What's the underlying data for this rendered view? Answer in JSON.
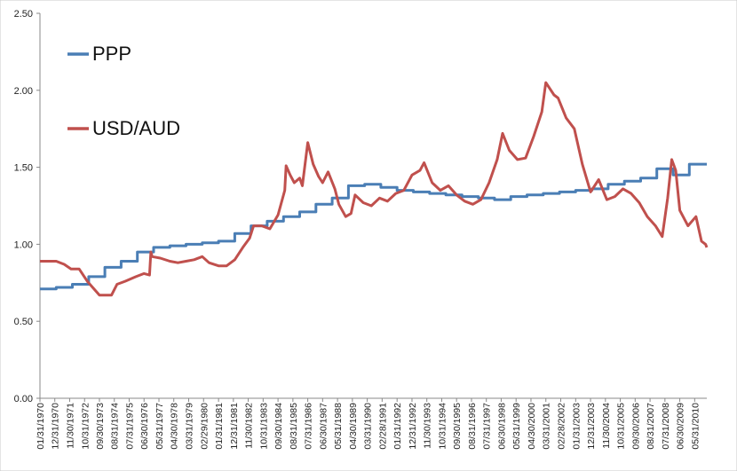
{
  "chart_data": {
    "type": "line",
    "xlabel": "",
    "ylabel": "",
    "ylim": [
      0,
      2.5
    ],
    "yticks": [
      "0.00",
      "0.50",
      "1.00",
      "1.50",
      "2.00",
      "2.50"
    ],
    "xlim": [
      "01/31/1970",
      "02/28/2011"
    ],
    "grid": false,
    "legend": "top-left",
    "xtick_labels": [
      "01/31/1970",
      "12/31/1970",
      "11/30/1971",
      "10/31/1972",
      "09/30/1973",
      "08/31/1974",
      "07/31/1975",
      "06/30/1976",
      "05/31/1977",
      "04/30/1978",
      "03/31/1979",
      "02/29/1980",
      "01/31/1981",
      "12/31/1981",
      "11/30/1982",
      "10/31/1983",
      "09/30/1984",
      "08/31/1985",
      "07/31/1986",
      "06/30/1987",
      "05/31/1988",
      "04/30/1989",
      "03/31/1990",
      "02/28/1991",
      "01/31/1992",
      "12/31/1992",
      "11/30/1993",
      "10/31/1994",
      "09/30/1995",
      "08/31/1996",
      "07/31/1997",
      "06/30/1998",
      "05/31/1999",
      "04/30/2000",
      "03/31/2001",
      "02/28/2002",
      "01/31/2003",
      "12/31/2003",
      "11/30/2004",
      "10/31/2005",
      "09/30/2006",
      "08/31/2007",
      "07/31/2008",
      "06/30/2009",
      "05/31/2010"
    ],
    "series": [
      {
        "name": "PPP",
        "color": "#4a7eb5",
        "step": true,
        "points": [
          [
            "01/31/1970",
            0.71
          ],
          [
            "01/31/1971",
            0.72
          ],
          [
            "01/31/1972",
            0.74
          ],
          [
            "01/31/1973",
            0.79
          ],
          [
            "01/31/1974",
            0.85
          ],
          [
            "01/31/1975",
            0.89
          ],
          [
            "01/31/1976",
            0.95
          ],
          [
            "01/31/1977",
            0.98
          ],
          [
            "01/31/1978",
            0.99
          ],
          [
            "01/31/1979",
            1.0
          ],
          [
            "01/31/1980",
            1.01
          ],
          [
            "01/31/1981",
            1.02
          ],
          [
            "01/31/1982",
            1.07
          ],
          [
            "01/31/1983",
            1.12
          ],
          [
            "01/31/1984",
            1.15
          ],
          [
            "01/31/1985",
            1.18
          ],
          [
            "01/31/1986",
            1.21
          ],
          [
            "01/31/1987",
            1.26
          ],
          [
            "01/31/1988",
            1.3
          ],
          [
            "01/31/1989",
            1.38
          ],
          [
            "01/31/1990",
            1.39
          ],
          [
            "01/31/1991",
            1.37
          ],
          [
            "01/31/1992",
            1.35
          ],
          [
            "01/31/1993",
            1.34
          ],
          [
            "01/31/1994",
            1.33
          ],
          [
            "01/31/1995",
            1.32
          ],
          [
            "01/31/1996",
            1.31
          ],
          [
            "01/31/1997",
            1.3
          ],
          [
            "01/31/1998",
            1.29
          ],
          [
            "01/31/1999",
            1.31
          ],
          [
            "01/31/2000",
            1.32
          ],
          [
            "01/31/2001",
            1.33
          ],
          [
            "01/31/2002",
            1.34
          ],
          [
            "01/31/2003",
            1.35
          ],
          [
            "01/31/2004",
            1.36
          ],
          [
            "01/31/2005",
            1.39
          ],
          [
            "01/31/2006",
            1.41
          ],
          [
            "01/31/2007",
            1.43
          ],
          [
            "01/31/2008",
            1.49
          ],
          [
            "01/31/2009",
            1.45
          ],
          [
            "01/31/2010",
            1.52
          ],
          [
            "02/28/2011",
            1.52
          ]
        ]
      },
      {
        "name": "USD/AUD",
        "color": "#c0504d",
        "step": false,
        "points": [
          [
            "01/31/1970",
            0.89
          ],
          [
            "07/31/1970",
            0.89
          ],
          [
            "01/31/1971",
            0.89
          ],
          [
            "07/31/1971",
            0.87
          ],
          [
            "12/31/1971",
            0.84
          ],
          [
            "06/30/1972",
            0.84
          ],
          [
            "12/31/1972",
            0.76
          ],
          [
            "06/30/1973",
            0.7
          ],
          [
            "09/30/1973",
            0.67
          ],
          [
            "06/30/1974",
            0.67
          ],
          [
            "10/31/1974",
            0.74
          ],
          [
            "04/30/1975",
            0.76
          ],
          [
            "12/31/1975",
            0.79
          ],
          [
            "06/30/1976",
            0.81
          ],
          [
            "10/31/1976",
            0.8
          ],
          [
            "11/30/1976",
            0.95
          ],
          [
            "12/31/1976",
            0.92
          ],
          [
            "06/30/1977",
            0.91
          ],
          [
            "01/31/1978",
            0.89
          ],
          [
            "07/31/1978",
            0.88
          ],
          [
            "01/31/1979",
            0.89
          ],
          [
            "07/31/1979",
            0.9
          ],
          [
            "01/31/1980",
            0.92
          ],
          [
            "06/30/1980",
            0.88
          ],
          [
            "01/31/1981",
            0.86
          ],
          [
            "07/31/1981",
            0.86
          ],
          [
            "01/31/1982",
            0.9
          ],
          [
            "07/31/1982",
            0.98
          ],
          [
            "12/31/1982",
            1.04
          ],
          [
            "03/31/1983",
            1.12
          ],
          [
            "09/30/1983",
            1.12
          ],
          [
            "03/31/1984",
            1.1
          ],
          [
            "09/30/1984",
            1.19
          ],
          [
            "02/28/1985",
            1.35
          ],
          [
            "03/31/1985",
            1.51
          ],
          [
            "06/30/1985",
            1.45
          ],
          [
            "09/30/1985",
            1.4
          ],
          [
            "01/31/1986",
            1.43
          ],
          [
            "03/31/1986",
            1.38
          ],
          [
            "07/31/1986",
            1.66
          ],
          [
            "11/30/1986",
            1.52
          ],
          [
            "03/31/1987",
            1.44
          ],
          [
            "06/30/1987",
            1.4
          ],
          [
            "10/31/1987",
            1.47
          ],
          [
            "03/31/1988",
            1.36
          ],
          [
            "06/30/1988",
            1.26
          ],
          [
            "11/30/1988",
            1.18
          ],
          [
            "03/31/1989",
            1.2
          ],
          [
            "06/30/1989",
            1.32
          ],
          [
            "12/31/1989",
            1.27
          ],
          [
            "06/30/1990",
            1.25
          ],
          [
            "12/31/1990",
            1.3
          ],
          [
            "06/30/1991",
            1.28
          ],
          [
            "12/31/1991",
            1.33
          ],
          [
            "06/30/1992",
            1.35
          ],
          [
            "12/31/1992",
            1.45
          ],
          [
            "06/30/1993",
            1.48
          ],
          [
            "09/30/1993",
            1.53
          ],
          [
            "03/31/1994",
            1.4
          ],
          [
            "09/30/1994",
            1.35
          ],
          [
            "03/31/1995",
            1.38
          ],
          [
            "09/30/1995",
            1.32
          ],
          [
            "03/31/1996",
            1.28
          ],
          [
            "09/30/1996",
            1.26
          ],
          [
            "03/31/1997",
            1.29
          ],
          [
            "09/30/1997",
            1.4
          ],
          [
            "03/31/1998",
            1.55
          ],
          [
            "07/31/1998",
            1.72
          ],
          [
            "12/31/1998",
            1.61
          ],
          [
            "06/30/1999",
            1.55
          ],
          [
            "12/31/1999",
            1.56
          ],
          [
            "06/30/2000",
            1.7
          ],
          [
            "12/31/2000",
            1.86
          ],
          [
            "03/31/2001",
            2.05
          ],
          [
            "09/30/2001",
            1.97
          ],
          [
            "12/31/2001",
            1.95
          ],
          [
            "06/30/2002",
            1.82
          ],
          [
            "12/31/2002",
            1.75
          ],
          [
            "06/30/2003",
            1.52
          ],
          [
            "12/31/2003",
            1.34
          ],
          [
            "06/30/2004",
            1.42
          ],
          [
            "12/31/2004",
            1.29
          ],
          [
            "06/30/2005",
            1.31
          ],
          [
            "12/31/2005",
            1.36
          ],
          [
            "06/30/2006",
            1.33
          ],
          [
            "12/31/2006",
            1.27
          ],
          [
            "06/30/2007",
            1.18
          ],
          [
            "12/31/2007",
            1.12
          ],
          [
            "05/31/2008",
            1.05
          ],
          [
            "09/30/2008",
            1.3
          ],
          [
            "12/31/2008",
            1.55
          ],
          [
            "03/31/2009",
            1.48
          ],
          [
            "06/30/2009",
            1.22
          ],
          [
            "12/31/2009",
            1.12
          ],
          [
            "06/30/2010",
            1.18
          ],
          [
            "10/31/2010",
            1.02
          ],
          [
            "01/31/2011",
            1.0
          ],
          [
            "02/28/2011",
            0.98
          ]
        ]
      }
    ]
  }
}
